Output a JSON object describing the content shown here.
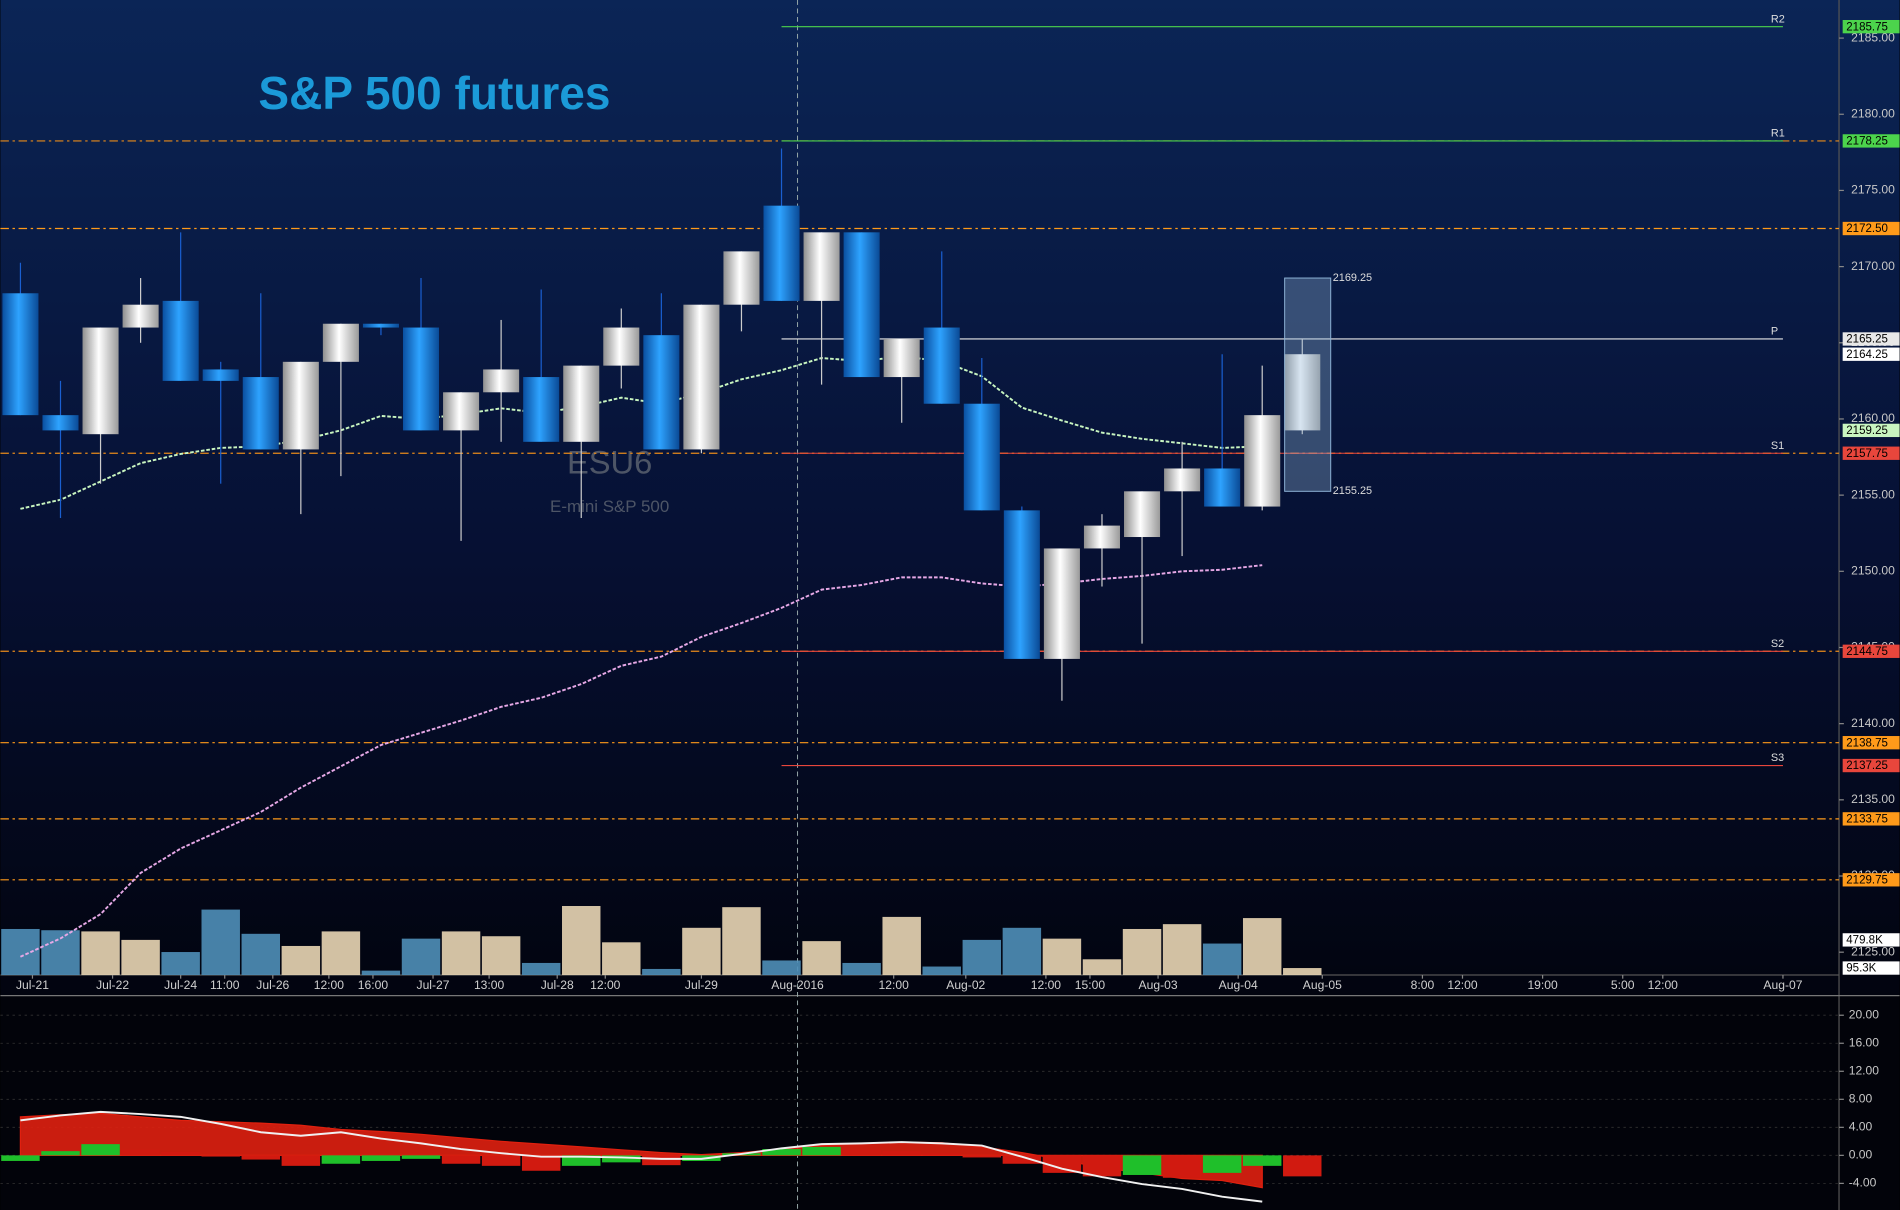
{
  "chart_data": [
    {
      "type": "candlestick",
      "title": "S&P 500 futures",
      "watermark": "ESU6",
      "watermark_subtitle": "E-mini S&P 500",
      "xlim": [
        -0.5,
        45.4
      ],
      "xticks": [
        {
          "value": 0.3,
          "label": "Jul-21"
        },
        {
          "value": 2.3,
          "label": "Jul-22"
        },
        {
          "value": 4.0,
          "label": "Jul-24"
        },
        {
          "value": 5.1,
          "label": "11:00"
        },
        {
          "value": 6.3,
          "label": "Jul-26"
        },
        {
          "value": 7.7,
          "label": "12:00"
        },
        {
          "value": 8.8,
          "label": "16:00"
        },
        {
          "value": 10.3,
          "label": "Jul-27"
        },
        {
          "value": 11.7,
          "label": "13:00"
        },
        {
          "value": 13.4,
          "label": "Jul-28"
        },
        {
          "value": 14.6,
          "label": "12:00"
        },
        {
          "value": 17.0,
          "label": "Jul-29"
        },
        {
          "value": 19.4,
          "label": "Aug-2016"
        },
        {
          "value": 21.8,
          "label": "12:00"
        },
        {
          "value": 23.6,
          "label": "Aug-02"
        },
        {
          "value": 25.6,
          "label": "12:00"
        },
        {
          "value": 26.7,
          "label": "15:00"
        },
        {
          "value": 28.4,
          "label": "Aug-03"
        },
        {
          "value": 30.4,
          "label": "Aug-04"
        },
        {
          "value": 32.5,
          "label": "Aug-05"
        },
        {
          "value": 35.0,
          "label": "8:00"
        },
        {
          "value": 36.0,
          "label": "12:00"
        },
        {
          "value": 38.0,
          "label": "19:00"
        },
        {
          "value": 40.0,
          "label": "5:00"
        },
        {
          "value": 41.0,
          "label": "12:00"
        },
        {
          "value": 44.0,
          "label": "Aug-07"
        }
      ],
      "ylim": [
        2123.5,
        2187.5
      ],
      "yticks": [
        {
          "value": 2125,
          "label": "2125.00"
        },
        {
          "value": 2130,
          "label": "2130.00"
        },
        {
          "value": 2135,
          "label": "2135.00"
        },
        {
          "value": 2140,
          "label": "2140.00"
        },
        {
          "value": 2145,
          "label": "2145.00"
        },
        {
          "value": 2150,
          "label": "2150.00"
        },
        {
          "value": 2155,
          "label": "2155.00"
        },
        {
          "value": 2160,
          "label": "2160.00"
        },
        {
          "value": 2165,
          "label": "2165.00"
        },
        {
          "value": 2170,
          "label": "2170.00"
        },
        {
          "value": 2175,
          "label": "2175.00"
        },
        {
          "value": 2180,
          "label": "2180.00"
        },
        {
          "value": 2185,
          "label": "2185.00"
        }
      ],
      "y2lim": [
        0,
        13320
      ],
      "candles": {
        "up_color": "#e6e6e6",
        "down_color": "#1f8fe8",
        "open": [
          2168.25,
          2160.25,
          2159,
          2166,
          2167.75,
          2163.25,
          2162.75,
          2158,
          2163.75,
          2166.25,
          2166,
          2159.25,
          2161.75,
          2162.75,
          2158.5,
          2163.5,
          2165.5,
          2158,
          2167.5,
          2174,
          2167.75,
          2172.25,
          2162.75,
          2166,
          2161,
          2154,
          2144.25,
          2151.5,
          2152.25,
          2155.25,
          2156.75,
          2154.25,
          2159.25
        ],
        "high": [
          2170.25,
          2162.5,
          2166,
          2169.25,
          2172.25,
          2163.75,
          2168.25,
          2163.75,
          2166.25,
          2166.25,
          2169.25,
          2161.75,
          2166.5,
          2168.5,
          2163.5,
          2167.25,
          2168.25,
          2167.5,
          2171,
          2177.75,
          2172.25,
          2172.25,
          2165.25,
          2171,
          2164,
          2154.25,
          2151.5,
          2153.75,
          2155.25,
          2158.5,
          2164.25,
          2163.5,
          2165.25
        ],
        "low": [
          2160.25,
          2153.5,
          2155.75,
          2165,
          2162.5,
          2155.75,
          2158,
          2153.75,
          2156.25,
          2165.5,
          2159.25,
          2152,
          2158.5,
          2158.5,
          2153.5,
          2162,
          2158,
          2157.75,
          2165.75,
          2167.75,
          2162.25,
          2162.75,
          2159.75,
          2161,
          2154,
          2144.25,
          2141.5,
          2149,
          2145.25,
          2151,
          2154.25,
          2154,
          2159
        ],
        "close": [
          2160.25,
          2159.25,
          2166,
          2167.5,
          2162.5,
          2162.5,
          2158,
          2163.75,
          2166.25,
          2166,
          2159.25,
          2161.75,
          2163.25,
          2158.5,
          2163.5,
          2166,
          2158,
          2167.5,
          2171,
          2167.75,
          2172.25,
          2162.75,
          2165.25,
          2161,
          2154,
          2144.25,
          2151.5,
          2153,
          2155.25,
          2156.75,
          2154.25,
          2160.25,
          2164.25
        ]
      },
      "moving_averages": [
        {
          "color": "#c8f5c0",
          "values": [
            2154.1,
            2154.7,
            2155.9,
            2157.1,
            2157.7,
            2158.1,
            2158.2,
            2158.6,
            2159.25,
            2160.2,
            2160,
            2160.3,
            2160.7,
            2160.4,
            2160.8,
            2161.4,
            2161,
            2161.7,
            2162.6,
            2163.2,
            2164,
            2163.8,
            2164.1,
            2163.8,
            2162.8,
            2160.75,
            2159.9,
            2159.1,
            2158.7,
            2158.4,
            2158.1,
            2158.2,
            null
          ]
        },
        {
          "color": "#e6a8e6",
          "values": [
            2124.7,
            2125.9,
            2127.5,
            2130.2,
            2131.8,
            2133,
            2134.2,
            2135.8,
            2137.2,
            2138.6,
            2139.4,
            2140.2,
            2141.1,
            2141.7,
            2142.6,
            2143.8,
            2144.4,
            2145.7,
            2146.6,
            2147.6,
            2148.8,
            2149.1,
            2149.6,
            2149.6,
            2149.2,
            2149,
            2149.2,
            2149.5,
            2149.7,
            2150,
            2150.1,
            2150.4,
            null
          ]
        }
      ],
      "volume": {
        "axis": "y2",
        "up_color": "#e9d6b4",
        "down_color": "#4f8fb8",
        "values": [
          629,
          612,
          596,
          480,
          314,
          894,
          563,
          397,
          596,
          60,
          497,
          596,
          530,
          165,
          943,
          447,
          83,
          645,
          927,
          199,
          463,
          165,
          794,
          116,
          480,
          645,
          497,
          215,
          629,
          695,
          430,
          778,
          95.3
        ]
      },
      "volume_flags": [
        {
          "value": 479.8,
          "label": "479.8K",
          "color": "#ffffff"
        },
        {
          "value": 95.3,
          "label": "95.3K",
          "color": "#ffffff"
        }
      ],
      "levels": [
        {
          "value": 2178.25,
          "color": "#e88a1a"
        },
        {
          "value": 2172.5,
          "label": "2172.50",
          "color": "#ff9a1a"
        },
        {
          "value": 2157.75,
          "color": "#e88a1a"
        },
        {
          "value": 2144.75,
          "color": "#e88a1a"
        },
        {
          "value": 2138.75,
          "label": "2138.75",
          "color": "#ff9a1a"
        },
        {
          "value": 2133.75,
          "label": "2133.75",
          "color": "#ff9a1a"
        },
        {
          "value": 2129.75,
          "label": "2129.75",
          "color": "#ff9a1a"
        }
      ],
      "pivots": [
        {
          "name": "R2",
          "value": 2185.75,
          "label": "2185.75",
          "color": "#4cd44c"
        },
        {
          "name": "R1",
          "value": 2178.25,
          "label": "2178.25",
          "color": "#4cd44c"
        },
        {
          "name": "P",
          "value": 2165.25,
          "label": "2165.25",
          "color": "#e8e8e8"
        },
        {
          "name": "S1",
          "value": 2157.75,
          "label": "2157.75",
          "color": "#e8463c"
        },
        {
          "name": "S2",
          "value": 2144.75,
          "label": "2144.75",
          "color": "#e8463c"
        },
        {
          "name": "S3",
          "value": 2137.25,
          "label": "2137.25",
          "color": "#e8463c"
        }
      ],
      "markers": [
        {
          "value": 2164.25,
          "label": "2164.25",
          "color": "#ffffff"
        },
        {
          "value": 2159.25,
          "label": "2159.25",
          "color": "#c8f5c0"
        }
      ],
      "projection": {
        "high": 2169.25,
        "low": 2155.25,
        "color": "#8fb4d8"
      }
    },
    {
      "type": "macd",
      "ylim": [
        -7.8,
        22.8
      ],
      "yticks": [
        {
          "value": 20,
          "label": "20.00"
        },
        {
          "value": 16,
          "label": "16.00"
        },
        {
          "value": 12,
          "label": "12.00"
        },
        {
          "value": 8,
          "label": "8.00"
        },
        {
          "value": 4,
          "label": "4.00"
        },
        {
          "value": 0,
          "label": "0.00"
        },
        {
          "value": -4,
          "label": "-4.00"
        }
      ],
      "histogram": {
        "up_color": "#1fbf2a",
        "down_color": "#d11a10",
        "values": [
          -0.8,
          0.6,
          1.6,
          0.8,
          0.5,
          0,
          -0.6,
          -1.5,
          -1.2,
          -0.8,
          -0.5,
          -1.2,
          -1.5,
          -2.2,
          -1.5,
          -1.0,
          -1.4,
          -0.8,
          0.3,
          0.9,
          1.2,
          0.8,
          0.6,
          0.3,
          -0.3,
          -1.2,
          -2.5,
          -3,
          -2.8,
          -3.2,
          -2.5,
          -1.5,
          -3.0
        ]
      },
      "macd": {
        "color": "#e0200f",
        "values": [
          5.5,
          5.8,
          6,
          5.5,
          5,
          4.8,
          4.6,
          4.3,
          3.7,
          3.4,
          3,
          2.5,
          2,
          1.6,
          1.2,
          0.8,
          0.4,
          0.1,
          0.4,
          0.9,
          1.4,
          1.7,
          1.9,
          1.8,
          1.2,
          0.4,
          -0.6,
          -1.8,
          -2.5,
          -3.3,
          -3.6,
          -4.6,
          null
        ]
      },
      "signal": {
        "color": "#f0f0f0",
        "values": [
          5,
          5.7,
          6.2,
          5.9,
          5.5,
          4.5,
          3.3,
          2.8,
          3.3,
          2.4,
          1.7,
          0.9,
          0.3,
          -0.2,
          -0.2,
          -0.3,
          -0.5,
          -0.5,
          0.2,
          1.0,
          1.6,
          1.7,
          1.9,
          1.7,
          1.4,
          -0.2,
          -1.9,
          -3.1,
          -4.1,
          -4.8,
          -5.9,
          -6.6,
          null
        ]
      }
    }
  ]
}
